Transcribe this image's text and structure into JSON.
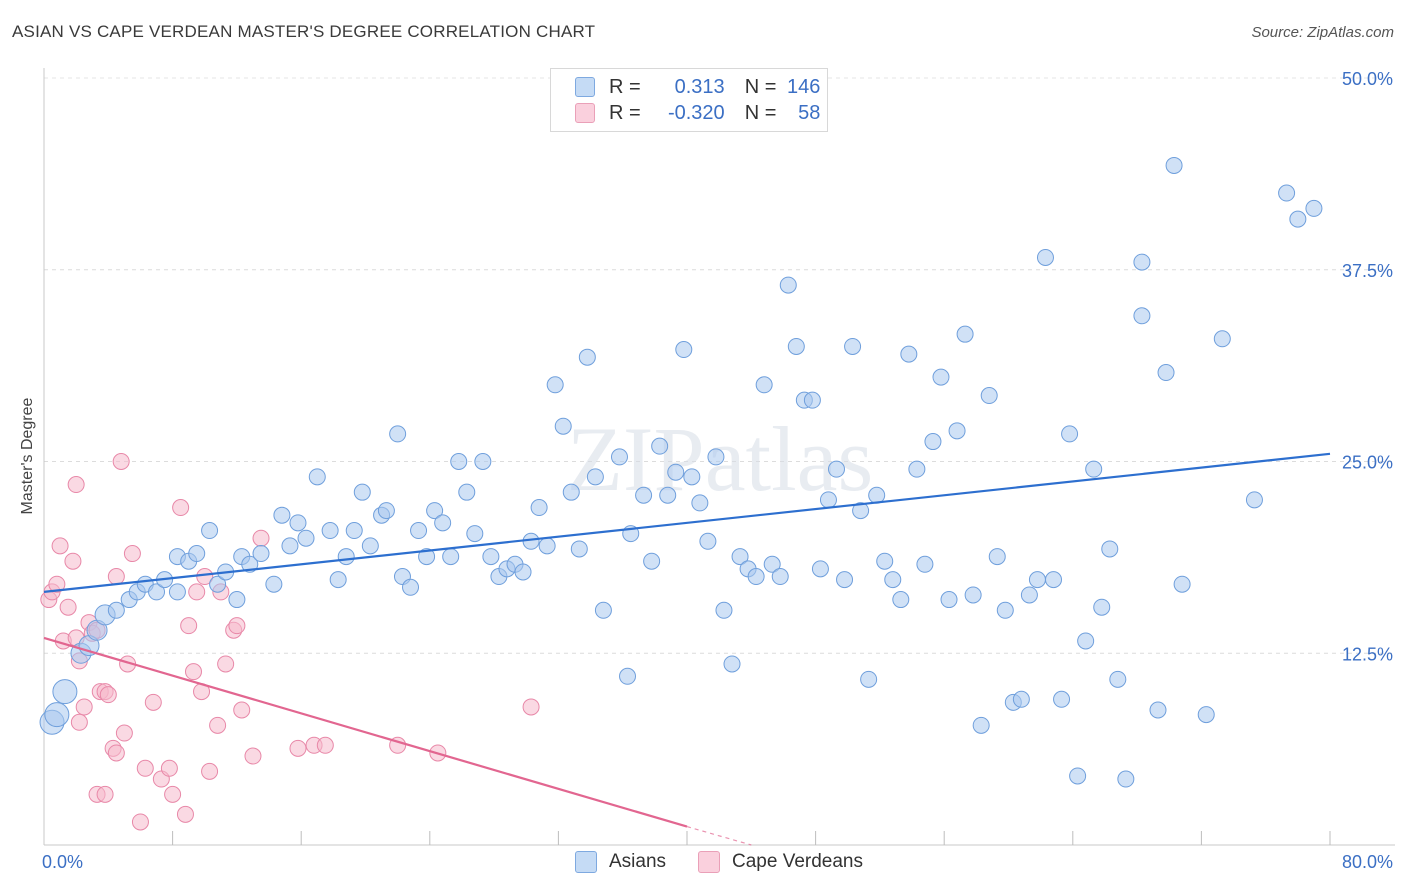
{
  "title": "ASIAN VS CAPE VERDEAN MASTER'S DEGREE CORRELATION CHART",
  "source": "Source: ZipAtlas.com",
  "watermark": "ZIPatlas",
  "colors": {
    "asian_fill": "#a9c8ef",
    "asian_stroke": "#6f9fdc",
    "asian_line": "#2d6fcf",
    "cape_fill": "#f5b9cc",
    "cape_stroke": "#e888a8",
    "cape_line": "#e26690",
    "axis_label": "#3b6fc4"
  },
  "legend": {
    "row1": {
      "r_label": "R =",
      "r_value": "0.313",
      "n_label": "N =",
      "n_value": "146"
    },
    "row2": {
      "r_label": "R =",
      "r_value": "-0.320",
      "n_label": "N =",
      "n_value": "58"
    }
  },
  "bottom_legend": {
    "asians": "Asians",
    "cape": "Cape Verdeans"
  },
  "chart_data": {
    "type": "scatter",
    "title": "ASIAN VS CAPE VERDEAN MASTER'S DEGREE CORRELATION CHART",
    "xlabel": "",
    "ylabel": "Master's Degree",
    "xlim": [
      0,
      80
    ],
    "ylim": [
      0,
      50
    ],
    "x_tick_labels": [
      "0.0%",
      "80.0%"
    ],
    "y_ticks": [
      12.5,
      25.0,
      37.5,
      50.0
    ],
    "y_tick_labels": [
      "12.5%",
      "25.0%",
      "37.5%",
      "50.0%"
    ],
    "grid": true,
    "series": [
      {
        "name": "Asians",
        "r": 0.313,
        "n": 146,
        "trend": {
          "x": [
            0,
            80
          ],
          "y": [
            16.5,
            25.5
          ]
        },
        "points": [
          [
            0.5,
            8.0
          ],
          [
            0.8,
            8.5
          ],
          [
            1.3,
            10.0
          ],
          [
            2.3,
            12.5
          ],
          [
            2.8,
            13.0
          ],
          [
            3.3,
            14.0
          ],
          [
            3.8,
            15.0
          ],
          [
            4.5,
            15.3
          ],
          [
            5.3,
            16.0
          ],
          [
            5.8,
            16.5
          ],
          [
            6.3,
            17.0
          ],
          [
            7.0,
            16.5
          ],
          [
            7.5,
            17.3
          ],
          [
            8.3,
            16.5
          ],
          [
            8.3,
            18.8
          ],
          [
            9.0,
            18.5
          ],
          [
            9.5,
            19.0
          ],
          [
            10.3,
            20.5
          ],
          [
            10.8,
            17.0
          ],
          [
            11.3,
            17.8
          ],
          [
            12.0,
            16.0
          ],
          [
            12.3,
            18.8
          ],
          [
            12.8,
            18.3
          ],
          [
            13.5,
            19.0
          ],
          [
            14.3,
            17.0
          ],
          [
            14.8,
            21.5
          ],
          [
            15.3,
            19.5
          ],
          [
            15.8,
            21.0
          ],
          [
            16.3,
            20.0
          ],
          [
            17.0,
            24.0
          ],
          [
            17.8,
            20.5
          ],
          [
            18.3,
            17.3
          ],
          [
            18.8,
            18.8
          ],
          [
            19.3,
            20.5
          ],
          [
            19.8,
            23.0
          ],
          [
            20.3,
            19.5
          ],
          [
            21.0,
            21.5
          ],
          [
            21.3,
            21.8
          ],
          [
            22.0,
            26.8
          ],
          [
            22.3,
            17.5
          ],
          [
            22.8,
            16.8
          ],
          [
            23.3,
            20.5
          ],
          [
            23.8,
            18.8
          ],
          [
            24.3,
            21.8
          ],
          [
            24.8,
            21.0
          ],
          [
            25.3,
            18.8
          ],
          [
            25.8,
            25.0
          ],
          [
            26.3,
            23.0
          ],
          [
            26.8,
            20.3
          ],
          [
            27.3,
            25.0
          ],
          [
            27.8,
            18.8
          ],
          [
            28.3,
            17.5
          ],
          [
            28.8,
            18.0
          ],
          [
            29.3,
            18.3
          ],
          [
            29.8,
            17.8
          ],
          [
            30.3,
            19.8
          ],
          [
            30.8,
            22.0
          ],
          [
            31.3,
            19.5
          ],
          [
            31.8,
            30.0
          ],
          [
            32.3,
            27.3
          ],
          [
            32.8,
            23.0
          ],
          [
            33.3,
            19.3
          ],
          [
            33.8,
            31.8
          ],
          [
            34.3,
            24.0
          ],
          [
            34.8,
            15.3
          ],
          [
            35.8,
            25.3
          ],
          [
            36.3,
            11.0
          ],
          [
            36.5,
            20.3
          ],
          [
            37.3,
            22.8
          ],
          [
            37.8,
            18.5
          ],
          [
            38.3,
            26.0
          ],
          [
            38.8,
            22.8
          ],
          [
            39.3,
            24.3
          ],
          [
            39.8,
            32.3
          ],
          [
            40.3,
            24.0
          ],
          [
            40.8,
            22.3
          ],
          [
            41.3,
            19.8
          ],
          [
            41.8,
            25.3
          ],
          [
            42.3,
            15.3
          ],
          [
            42.8,
            11.8
          ],
          [
            43.3,
            18.8
          ],
          [
            43.8,
            18.0
          ],
          [
            44.3,
            17.5
          ],
          [
            44.8,
            30.0
          ],
          [
            45.3,
            18.3
          ],
          [
            45.8,
            17.5
          ],
          [
            46.3,
            36.5
          ],
          [
            46.8,
            32.5
          ],
          [
            47.3,
            29.0
          ],
          [
            47.8,
            29.0
          ],
          [
            48.3,
            18.0
          ],
          [
            48.8,
            22.5
          ],
          [
            49.3,
            24.5
          ],
          [
            49.8,
            17.3
          ],
          [
            50.3,
            32.5
          ],
          [
            50.8,
            21.8
          ],
          [
            51.3,
            10.8
          ],
          [
            51.8,
            22.8
          ],
          [
            52.3,
            18.5
          ],
          [
            52.8,
            17.3
          ],
          [
            53.3,
            16.0
          ],
          [
            53.8,
            32.0
          ],
          [
            54.3,
            24.5
          ],
          [
            54.8,
            18.3
          ],
          [
            55.3,
            26.3
          ],
          [
            55.8,
            30.5
          ],
          [
            56.3,
            16.0
          ],
          [
            56.8,
            27.0
          ],
          [
            57.3,
            33.3
          ],
          [
            57.8,
            16.3
          ],
          [
            58.3,
            7.8
          ],
          [
            58.8,
            29.3
          ],
          [
            59.3,
            18.8
          ],
          [
            59.8,
            15.3
          ],
          [
            60.3,
            9.3
          ],
          [
            60.8,
            9.5
          ],
          [
            61.3,
            16.3
          ],
          [
            61.8,
            17.3
          ],
          [
            62.3,
            38.3
          ],
          [
            62.8,
            17.3
          ],
          [
            63.3,
            9.5
          ],
          [
            63.8,
            26.8
          ],
          [
            64.3,
            4.5
          ],
          [
            64.8,
            13.3
          ],
          [
            65.3,
            24.5
          ],
          [
            65.8,
            15.5
          ],
          [
            66.3,
            19.3
          ],
          [
            66.8,
            10.8
          ],
          [
            67.3,
            4.3
          ],
          [
            68.3,
            38.0
          ],
          [
            68.3,
            34.5
          ],
          [
            69.3,
            8.8
          ],
          [
            69.8,
            30.8
          ],
          [
            70.3,
            44.3
          ],
          [
            70.8,
            17.0
          ],
          [
            72.3,
            8.5
          ],
          [
            73.3,
            33.0
          ],
          [
            75.3,
            22.5
          ],
          [
            77.3,
            42.5
          ],
          [
            78.0,
            40.8
          ],
          [
            79.0,
            41.5
          ]
        ]
      },
      {
        "name": "Cape Verdeans",
        "r": -0.32,
        "n": 58,
        "trend": {
          "x": [
            0,
            40
          ],
          "y": [
            13.5,
            1.2
          ]
        },
        "trend_extension": {
          "x": [
            40,
            44
          ],
          "y": [
            1.2,
            0
          ]
        },
        "points": [
          [
            0.3,
            16.0
          ],
          [
            0.5,
            16.5
          ],
          [
            0.8,
            17.0
          ],
          [
            1.0,
            19.5
          ],
          [
            1.2,
            13.3
          ],
          [
            1.5,
            15.5
          ],
          [
            1.8,
            18.5
          ],
          [
            2.0,
            23.5
          ],
          [
            2.0,
            13.5
          ],
          [
            2.2,
            12.0
          ],
          [
            2.2,
            8.0
          ],
          [
            2.5,
            9.0
          ],
          [
            2.8,
            14.5
          ],
          [
            3.0,
            13.8
          ],
          [
            3.3,
            14.0
          ],
          [
            3.3,
            3.3
          ],
          [
            3.5,
            10.0
          ],
          [
            3.8,
            10.0
          ],
          [
            3.8,
            3.3
          ],
          [
            4.0,
            9.8
          ],
          [
            4.3,
            6.3
          ],
          [
            4.5,
            6.0
          ],
          [
            4.5,
            17.5
          ],
          [
            4.8,
            25.0
          ],
          [
            5.0,
            7.3
          ],
          [
            5.2,
            11.8
          ],
          [
            5.5,
            19.0
          ],
          [
            6.0,
            1.5
          ],
          [
            6.3,
            5.0
          ],
          [
            6.8,
            9.3
          ],
          [
            7.3,
            4.3
          ],
          [
            7.8,
            5.0
          ],
          [
            8.0,
            3.3
          ],
          [
            8.5,
            22.0
          ],
          [
            8.8,
            2.0
          ],
          [
            9.0,
            14.3
          ],
          [
            9.3,
            11.3
          ],
          [
            9.5,
            16.5
          ],
          [
            9.8,
            10.0
          ],
          [
            10.0,
            17.5
          ],
          [
            10.3,
            4.8
          ],
          [
            10.8,
            7.8
          ],
          [
            11.0,
            16.5
          ],
          [
            11.3,
            11.8
          ],
          [
            11.8,
            14.0
          ],
          [
            12.0,
            14.3
          ],
          [
            12.3,
            8.8
          ],
          [
            13.0,
            5.8
          ],
          [
            13.5,
            20.0
          ],
          [
            15.8,
            6.3
          ],
          [
            16.8,
            6.5
          ],
          [
            17.5,
            6.5
          ],
          [
            22.0,
            6.5
          ],
          [
            24.5,
            6.0
          ],
          [
            30.3,
            9.0
          ]
        ]
      }
    ]
  }
}
